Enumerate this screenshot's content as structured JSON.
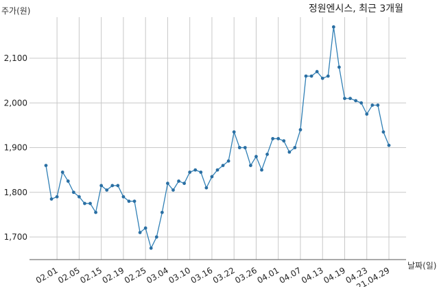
{
  "chart_data": {
    "type": "line",
    "title": "정원엔시스, 최근 3개월",
    "ylabel": "주가(원)",
    "xlabel": "날짜(일)",
    "ylim": [
      1650,
      2180
    ],
    "yticks": [
      1700,
      1800,
      1900,
      2000,
      2100
    ],
    "ytick_labels": [
      "1,700",
      "1,800",
      "1,900",
      "2,000",
      "2,100"
    ],
    "grid": true,
    "xtick_labels": [
      "02.01",
      "02.05",
      "02.15",
      "02.19",
      "02.25",
      "03.04",
      "03.10",
      "03.16",
      "03.22",
      "03.26",
      "04.01",
      "04.07",
      "04.13",
      "04.19",
      "04.23",
      "21.04.29"
    ],
    "xtick_positions": [
      2,
      6,
      10,
      14,
      18,
      22,
      26,
      30,
      34,
      38,
      42,
      46,
      50,
      54,
      58,
      62
    ],
    "values": [
      1860,
      1785,
      1790,
      1845,
      1825,
      1800,
      1790,
      1775,
      1775,
      1755,
      1815,
      1805,
      1815,
      1815,
      1790,
      1780,
      1780,
      1710,
      1720,
      1675,
      1700,
      1755,
      1820,
      1805,
      1825,
      1820,
      1845,
      1850,
      1845,
      1810,
      1835,
      1850,
      1860,
      1870,
      1935,
      1900,
      1900,
      1860,
      1880,
      1850,
      1885,
      1920,
      1920,
      1915,
      1890,
      1900,
      1940,
      2060,
      2060,
      2070,
      2055,
      2060,
      2170,
      2080,
      2010,
      2010,
      2005,
      2000,
      1975,
      1995,
      1995,
      1935,
      1905
    ]
  }
}
